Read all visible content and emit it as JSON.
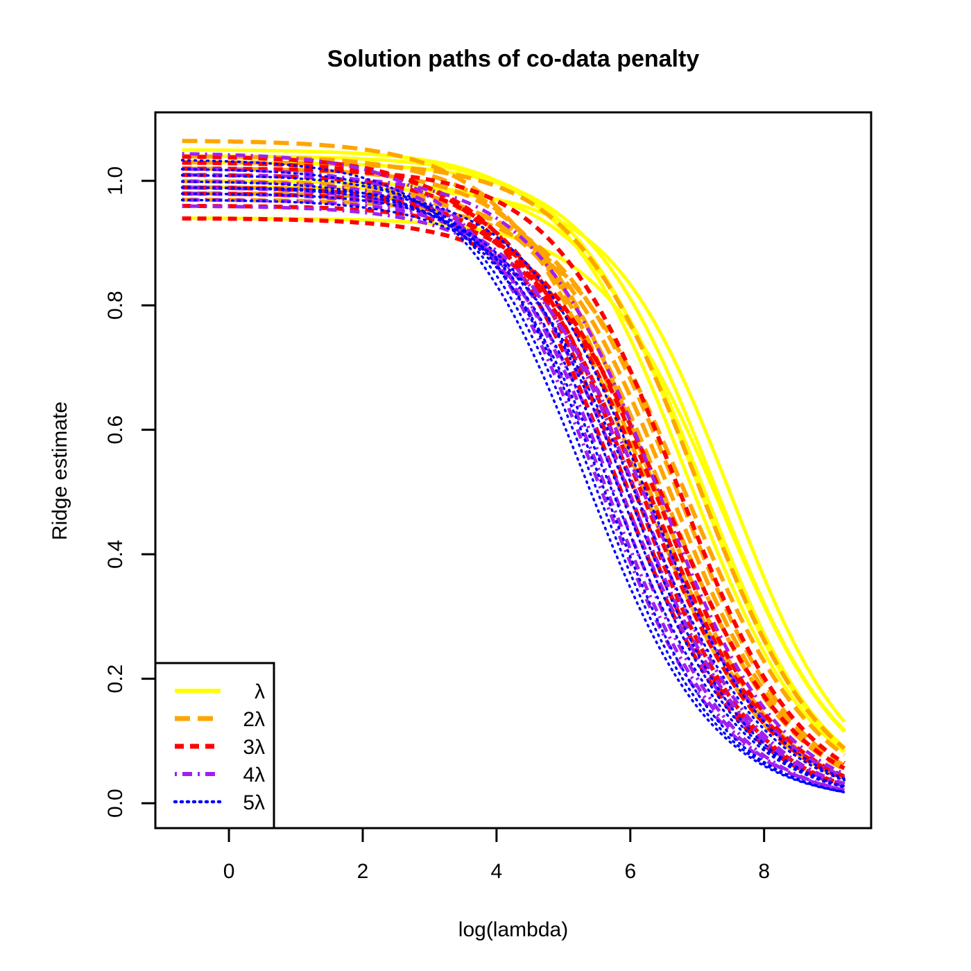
{
  "chart_data": {
    "type": "line",
    "title": "Solution paths of co-data penalty",
    "xlabel": "log(lambda)",
    "ylabel": "Ridge estimate",
    "xlim": [
      -1.1,
      9.6
    ],
    "ylim": [
      -0.04,
      1.11
    ],
    "x_ticks": [
      "0",
      "2",
      "4",
      "6",
      "8"
    ],
    "y_ticks": [
      "0.0",
      "0.2",
      "0.4",
      "0.6",
      "0.8",
      "1.0"
    ],
    "x_range": [
      -0.7,
      9.2
    ],
    "legend": {
      "position": "bottom-left"
    },
    "groups": [
      {
        "name": "λ",
        "color": "#FFFF00",
        "dash": "solid",
        "inflection": 7.18,
        "starts": [
          1.05,
          1.04,
          1.0,
          1.03,
          0.94,
          0.99
        ]
      },
      {
        "name": "2λ",
        "color": "#FFA500",
        "dash": "longdash",
        "inflection": 6.55,
        "starts": [
          1.065,
          1.04,
          1.02,
          1.0,
          0.99,
          0.98,
          0.97,
          1.03
        ]
      },
      {
        "name": "3λ",
        "color": "#FF0000",
        "dash": "dashed",
        "inflection": 6.25,
        "starts": [
          1.04,
          1.03,
          1.01,
          0.99,
          0.98,
          0.96,
          0.94,
          1.02
        ]
      },
      {
        "name": "4λ",
        "color": "#A020F0",
        "dash": "dotdash",
        "inflection": 5.95,
        "starts": [
          1.045,
          1.02,
          1.0,
          0.99,
          0.98,
          0.97,
          0.96,
          1.01
        ]
      },
      {
        "name": "5λ",
        "color": "#0000FF",
        "dash": "dotted",
        "inflection": 5.8,
        "starts": [
          1.035,
          1.02,
          1.01,
          1.0,
          0.99,
          0.98,
          0.97,
          0.99
        ]
      }
    ]
  }
}
